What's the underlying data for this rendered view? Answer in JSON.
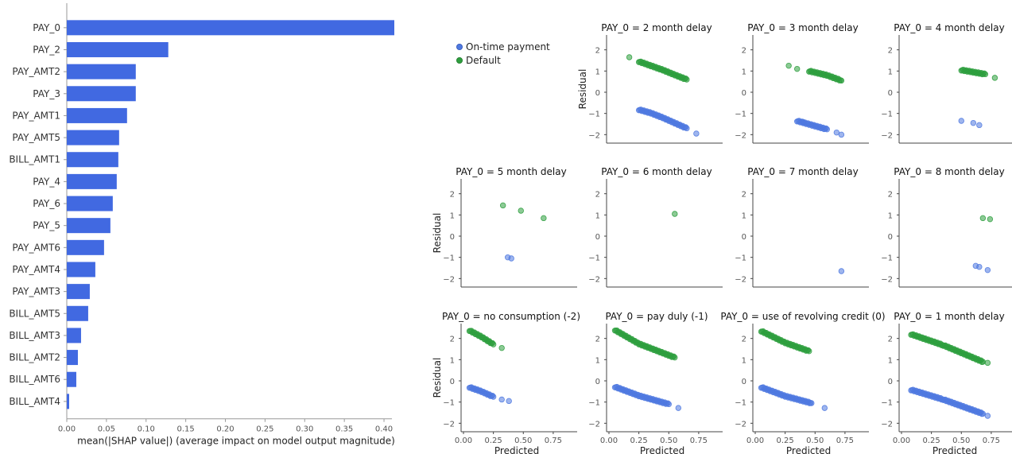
{
  "chart_data": [
    {
      "type": "bar",
      "orientation": "horizontal",
      "xlabel": "mean(|SHAP value|) (average impact on model output magnitude)",
      "xlim": [
        0,
        0.43
      ],
      "xticks": [
        "0.00",
        "0.05",
        "0.10",
        "0.15",
        "0.20",
        "0.25",
        "0.30",
        "0.35",
        "0.40"
      ],
      "bar_color": "#4169e1",
      "categories": [
        "PAY_0",
        "PAY_2",
        "PAY_AMT2",
        "PAY_3",
        "PAY_AMT1",
        "PAY_AMT5",
        "BILL_AMT1",
        "PAY_4",
        "PAY_6",
        "PAY_5",
        "PAY_AMT6",
        "PAY_AMT4",
        "PAY_AMT3",
        "BILL_AMT5",
        "BILL_AMT3",
        "BILL_AMT2",
        "BILL_AMT6",
        "BILL_AMT4"
      ],
      "values": [
        0.413,
        0.128,
        0.087,
        0.087,
        0.076,
        0.066,
        0.065,
        0.063,
        0.058,
        0.055,
        0.047,
        0.036,
        0.029,
        0.027,
        0.018,
        0.014,
        0.012,
        0.003
      ]
    },
    {
      "type": "scatter",
      "xlabel": "Predicted",
      "ylabel": "Residual",
      "xlim": [
        -0.02,
        0.95
      ],
      "ylim": [
        -2.4,
        2.7
      ],
      "xticks": [
        "0.00",
        "0.25",
        "0.50",
        "0.75"
      ],
      "yticks": [
        "2",
        "1",
        "0",
        "−1",
        "−2"
      ],
      "legend": [
        {
          "name": "On-time payment",
          "color": "#4f79e0"
        },
        {
          "name": "Default",
          "color": "#2e9e3e"
        }
      ],
      "legend_placement": "top-left",
      "panels": [
        {
          "title": "PAY_0 = 2 month delay",
          "blue": [
            [
              0.25,
              -0.82
            ],
            [
              0.35,
              -0.98
            ],
            [
              0.45,
              -1.2
            ],
            [
              0.55,
              -1.45
            ],
            [
              0.65,
              -1.7
            ]
          ],
          "green": [
            [
              0.25,
              1.45
            ],
            [
              0.35,
              1.25
            ],
            [
              0.45,
              1.05
            ],
            [
              0.55,
              0.82
            ],
            [
              0.65,
              0.6
            ]
          ],
          "blue_extra": [
            [
              0.73,
              -1.95
            ]
          ],
          "green_extra": [
            [
              0.17,
              1.65
            ]
          ]
        },
        {
          "title": "PAY_0 = 3 month delay",
          "blue": [
            [
              0.35,
              -1.35
            ],
            [
              0.6,
              -1.75
            ]
          ],
          "green": [
            [
              0.45,
              1.0
            ],
            [
              0.6,
              0.8
            ],
            [
              0.72,
              0.55
            ]
          ],
          "blue_extra": [
            [
              0.4,
              -1.4
            ],
            [
              0.68,
              -1.9
            ],
            [
              0.72,
              -2.0
            ]
          ],
          "green_extra": [
            [
              0.28,
              1.25
            ],
            [
              0.35,
              1.1
            ]
          ]
        },
        {
          "title": "PAY_0 = 4 month delay",
          "blue": [],
          "green": [
            [
              0.5,
              1.05
            ],
            [
              0.7,
              0.85
            ]
          ],
          "blue_extra": [
            [
              0.5,
              -1.35
            ],
            [
              0.6,
              -1.45
            ],
            [
              0.65,
              -1.55
            ]
          ],
          "green_extra": [
            [
              0.78,
              0.68
            ]
          ]
        },
        {
          "title": "PAY_0 = 5 month delay",
          "blue": [],
          "green": [],
          "blue_extra": [
            [
              0.37,
              -1.0
            ],
            [
              0.4,
              -1.05
            ]
          ],
          "green_extra": [
            [
              0.33,
              1.45
            ],
            [
              0.48,
              1.2
            ],
            [
              0.67,
              0.85
            ]
          ]
        },
        {
          "title": "PAY_0 = 6 month delay",
          "blue": [],
          "green": [],
          "blue_extra": [],
          "green_extra": [
            [
              0.55,
              1.05
            ]
          ]
        },
        {
          "title": "PAY_0 = 7 month delay",
          "blue": [],
          "green": [],
          "blue_extra": [
            [
              0.72,
              -1.65
            ]
          ],
          "green_extra": []
        },
        {
          "title": "PAY_0 = 8 month delay",
          "blue": [],
          "green": [],
          "blue_extra": [
            [
              0.62,
              -1.4
            ],
            [
              0.65,
              -1.45
            ],
            [
              0.72,
              -1.6
            ]
          ],
          "green_extra": [
            [
              0.68,
              0.85
            ],
            [
              0.74,
              0.8
            ]
          ]
        },
        {
          "title": "PAY_0 = no consumption (-2)",
          "blue": [
            [
              0.05,
              -0.3
            ],
            [
              0.15,
              -0.5
            ],
            [
              0.25,
              -0.75
            ]
          ],
          "green": [
            [
              0.05,
              2.38
            ],
            [
              0.15,
              2.08
            ],
            [
              0.25,
              1.72
            ]
          ],
          "blue_extra": [
            [
              0.32,
              -0.88
            ],
            [
              0.38,
              -0.95
            ]
          ],
          "green_extra": [
            [
              0.32,
              1.55
            ]
          ]
        },
        {
          "title": "PAY_0 = pay duly (-1)",
          "blue": [
            [
              0.05,
              -0.28
            ],
            [
              0.25,
              -0.7
            ],
            [
              0.5,
              -1.1
            ]
          ],
          "green": [
            [
              0.05,
              2.4
            ],
            [
              0.25,
              1.75
            ],
            [
              0.55,
              1.1
            ]
          ],
          "blue_extra": [
            [
              0.58,
              -1.28
            ]
          ],
          "green_extra": []
        },
        {
          "title": "PAY_0 = use of revolving credit (0)",
          "blue": [
            [
              0.05,
              -0.3
            ],
            [
              0.25,
              -0.72
            ],
            [
              0.47,
              -1.05
            ]
          ],
          "green": [
            [
              0.05,
              2.35
            ],
            [
              0.25,
              1.8
            ],
            [
              0.45,
              1.4
            ]
          ],
          "blue_extra": [
            [
              0.58,
              -1.28
            ]
          ],
          "green_extra": []
        },
        {
          "title": "PAY_0 = 1 month delay",
          "blue": [
            [
              0.08,
              -0.42
            ],
            [
              0.35,
              -0.88
            ],
            [
              0.68,
              -1.55
            ]
          ],
          "green": [
            [
              0.08,
              2.2
            ],
            [
              0.35,
              1.68
            ],
            [
              0.68,
              0.9
            ]
          ],
          "blue_extra": [
            [
              0.72,
              -1.65
            ]
          ],
          "green_extra": [
            [
              0.72,
              0.85
            ]
          ]
        }
      ]
    }
  ]
}
